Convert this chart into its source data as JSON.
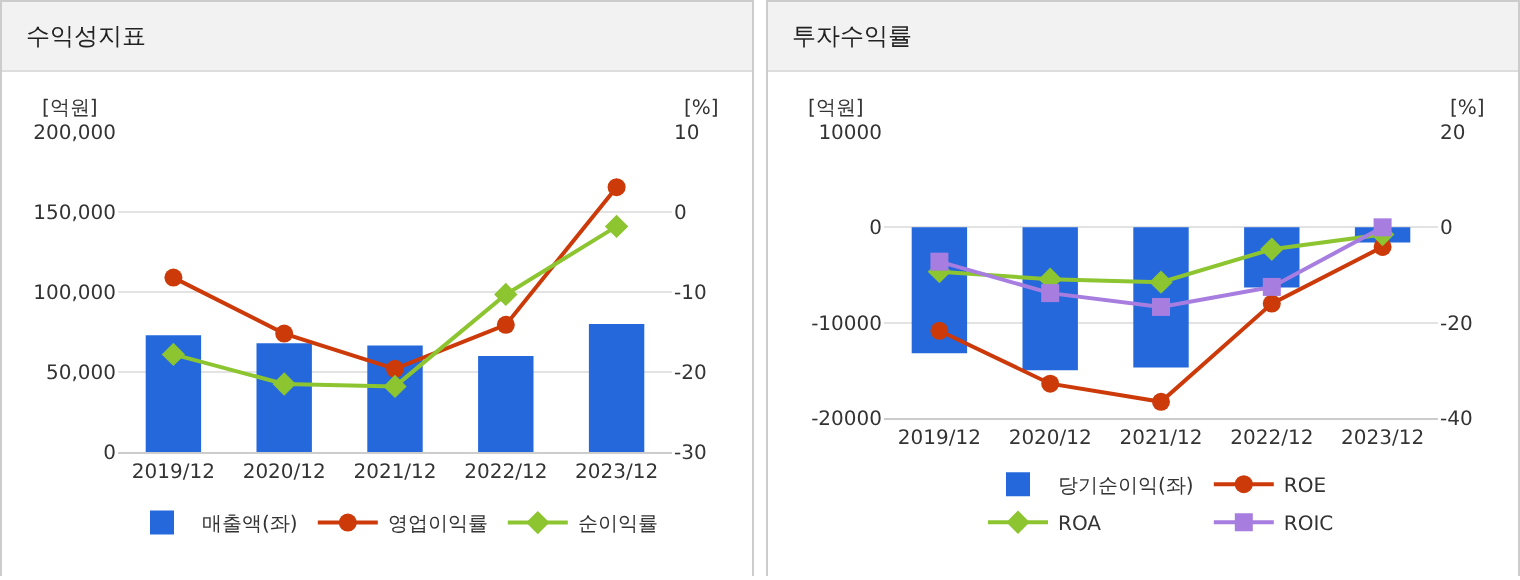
{
  "chart_data": [
    {
      "type": "bar",
      "title": "수익성지표",
      "ylabel": "[억원]",
      "y2label": "[%]",
      "categories": [
        "2019/12",
        "2020/12",
        "2021/12",
        "2022/12",
        "2023/12"
      ],
      "series": [
        {
          "name": "매출액(좌)",
          "color": "#2468dc",
          "values": [
            73000,
            68000,
            66500,
            60000,
            80000
          ]
        },
        {
          "name": "영업이익률",
          "type": "line",
          "axis": "y2",
          "marker": "circle",
          "color": "#cc3a0a",
          "values": [
            -8.2,
            -15.2,
            -19.6,
            -14.1,
            3.1
          ]
        },
        {
          "name": "순이익률",
          "type": "line",
          "axis": "y2",
          "marker": "diamond",
          "color": "#8cc530",
          "values": [
            -17.8,
            -21.5,
            -21.8,
            -10.3,
            -1.8
          ]
        }
      ],
      "ylim": [
        0,
        200000
      ],
      "yticks": [
        0,
        {
          "value": 50000,
          "label": "50,000"
        },
        {
          "value": 100000,
          "label": "100,000"
        },
        {
          "value": 150000,
          "label": "150,000"
        },
        {
          "value": 200000,
          "label": "200,000"
        }
      ],
      "y2lim": [
        -30,
        10
      ],
      "y2ticks": [
        -30,
        -20,
        -10,
        0,
        10
      ],
      "grid": "y",
      "legend": "bottom"
    },
    {
      "type": "bar",
      "title": "투자수익률",
      "ylabel": "[억원]",
      "y2label": "[%]",
      "categories": [
        "2019/12",
        "2020/12",
        "2021/12",
        "2022/12",
        "2023/12"
      ],
      "series": [
        {
          "name": "당기순이익(좌)",
          "color": "#2468dc",
          "values": [
            -13200,
            -15000,
            -14700,
            -6300,
            -1600
          ]
        },
        {
          "name": "ROE",
          "type": "line",
          "axis": "y2",
          "marker": "circle",
          "color": "#cc3a0a",
          "values": [
            -21.7,
            -32.8,
            -36.6,
            -16.0,
            -4.1
          ]
        },
        {
          "name": "ROA",
          "type": "line",
          "axis": "y2",
          "marker": "diamond",
          "color": "#8cc530",
          "values": [
            -9.3,
            -10.9,
            -11.5,
            -4.6,
            -1.5
          ]
        },
        {
          "name": "ROIC",
          "type": "line",
          "axis": "y2",
          "marker": "square",
          "color": "#a77de0",
          "values": [
            -7.2,
            -13.8,
            -16.7,
            -12.5,
            0
          ]
        }
      ],
      "ylim": [
        -20000,
        10000
      ],
      "yticks": [
        -20000,
        -10000,
        0,
        10000
      ],
      "y2lim": [
        -40,
        20
      ],
      "y2ticks": [
        -40,
        -20,
        0,
        20
      ],
      "grid": "y",
      "legend": "bottom"
    }
  ]
}
